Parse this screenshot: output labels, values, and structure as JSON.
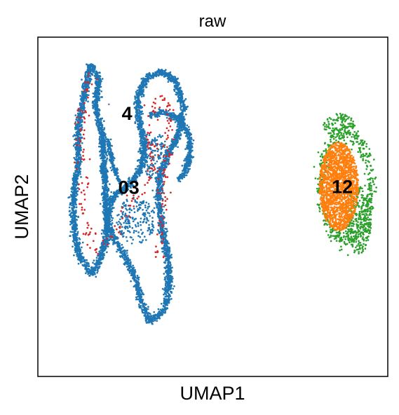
{
  "chart_data": {
    "type": "scatter",
    "title": "raw",
    "xlabel": "UMAP1",
    "ylabel": "UMAP2",
    "xlim": [
      0,
      100
    ],
    "ylim": [
      0,
      100
    ],
    "grid": false,
    "legend": "on data",
    "ticks": "none",
    "cluster_labels": [
      {
        "label": "4",
        "x": 25.5,
        "y": 77.1
      },
      {
        "label": "03",
        "x": 26.0,
        "y": 55.3
      },
      {
        "label": "12",
        "x": 87.0,
        "y": 55.5
      }
    ],
    "series": [
      {
        "cluster": "0",
        "color": "#1f77b4",
        "approx_points": 6500,
        "regions": [
          {
            "kind": "path",
            "width": 5.5,
            "pts": [
              [
                15.0,
                92.0
              ],
              [
                13.0,
                82.0
              ],
              [
                11.5,
                72.0
              ],
              [
                11.5,
                62.0
              ],
              [
                10.0,
                52.0
              ],
              [
                10.5,
                42.0
              ],
              [
                12.0,
                35.0
              ],
              [
                15.5,
                30.0
              ],
              [
                17.5,
                34.0
              ],
              [
                19.5,
                40.0
              ],
              [
                19.5,
                47.0
              ],
              [
                21.5,
                53.0
              ],
              [
                25.5,
                56.0
              ],
              [
                29.5,
                61.0
              ],
              [
                30.5,
                68.0
              ],
              [
                29.0,
                75.0
              ],
              [
                28.5,
                82.0
              ],
              [
                31.0,
                88.0
              ],
              [
                35.0,
                90.0
              ],
              [
                39.5,
                87.0
              ],
              [
                41.5,
                80.0
              ],
              [
                40.5,
                72.0
              ],
              [
                37.5,
                66.0
              ],
              [
                35.0,
                60.0
              ],
              [
                34.5,
                52.0
              ],
              [
                35.5,
                44.0
              ],
              [
                37.0,
                36.0
              ],
              [
                37.5,
                28.0
              ],
              [
                36.5,
                20.0
              ],
              [
                32.0,
                16.0
              ],
              [
                29.5,
                22.0
              ],
              [
                27.5,
                30.0
              ],
              [
                24.5,
                36.0
              ],
              [
                21.0,
                42.0
              ],
              [
                19.5,
                50.0
              ],
              [
                19.0,
                60.0
              ],
              [
                18.5,
                70.0
              ],
              [
                16.5,
                80.0
              ],
              [
                17.5,
                88.0
              ],
              [
                15.0,
                92.0
              ]
            ]
          },
          {
            "kind": "path",
            "width": 5.0,
            "pts": [
              [
                32.0,
                77.0
              ],
              [
                36.0,
                78.0
              ],
              [
                40.0,
                76.0
              ],
              [
                43.0,
                72.0
              ],
              [
                43.5,
                65.0
              ],
              [
                42.0,
                60.0
              ],
              [
                40.0,
                58.0
              ]
            ]
          },
          {
            "kind": "path",
            "width": 3.5,
            "pts": [
              [
                20.0,
                70.0
              ],
              [
                21.5,
                62.0
              ],
              [
                23.5,
                57.0
              ]
            ]
          },
          {
            "kind": "disk",
            "cx": 28.0,
            "cy": 46.0,
            "rx": 5.5,
            "ry": 7.0
          },
          {
            "kind": "disk",
            "cx": 33.5,
            "cy": 65.0,
            "rx": 4.0,
            "ry": 7.0
          }
        ]
      },
      {
        "cluster": "3",
        "color": "#d62728",
        "approx_points": 260,
        "regions": [
          {
            "kind": "path",
            "width": 10.0,
            "pts": [
              [
                15.0,
                90.0
              ],
              [
                12.5,
                75.0
              ],
              [
                13.0,
                62.0
              ],
              [
                13.0,
                48.0
              ],
              [
                17.0,
                36.0
              ],
              [
                22.0,
                42.0
              ],
              [
                26.0,
                50.0
              ],
              [
                30.0,
                55.0
              ],
              [
                33.5,
                62.0
              ],
              [
                32.0,
                70.0
              ],
              [
                34.0,
                82.0
              ],
              [
                38.0,
                80.0
              ],
              [
                36.0,
                55.0
              ],
              [
                35.0,
                35.0
              ]
            ]
          }
        ]
      },
      {
        "cluster": "2",
        "color": "#2ca02c",
        "approx_points": 900,
        "regions": [
          {
            "kind": "ring",
            "cx": 88.0,
            "cy": 56.0,
            "rx": 7.2,
            "ry": 15.5,
            "width": 2.0
          },
          {
            "kind": "disk",
            "cx": 91.5,
            "cy": 46.0,
            "rx": 3.8,
            "ry": 10.0
          },
          {
            "kind": "disk",
            "cx": 86.0,
            "cy": 74.0,
            "rx": 4.5,
            "ry": 3.5
          }
        ]
      },
      {
        "cluster": "1",
        "color": "#ff7f0e",
        "approx_points": 1700,
        "regions": [
          {
            "kind": "disk",
            "cx": 86.0,
            "cy": 56.0,
            "rx": 5.6,
            "ry": 13.0
          }
        ]
      },
      {
        "cluster": "4",
        "color": "#9467bd",
        "approx_points": 1,
        "regions": [
          {
            "kind": "point",
            "x": 20.3,
            "y": 80.2
          }
        ]
      }
    ]
  }
}
